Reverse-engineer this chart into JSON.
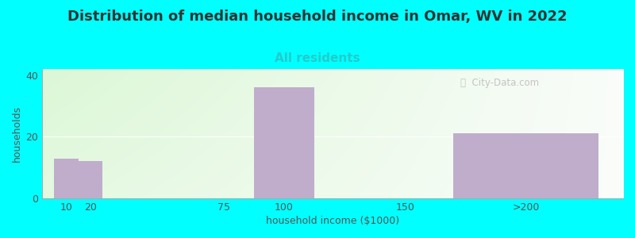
{
  "title": "Distribution of median household income in Omar, WV in 2022",
  "subtitle": "All residents",
  "xlabel": "household income ($1000)",
  "ylabel": "households",
  "background_color": "#00FFFF",
  "bar_color": "#C0ADCC",
  "categories": [
    "10",
    "20",
    "75",
    "100",
    "150",
    ">200"
  ],
  "x_positions": [
    10,
    20,
    75,
    100,
    150,
    200
  ],
  "bar_widths": [
    10,
    10,
    10,
    25,
    10,
    60
  ],
  "values": [
    13,
    12,
    0,
    36,
    0,
    21
  ],
  "yticks": [
    0,
    20,
    40
  ],
  "ylim": [
    0,
    42
  ],
  "xlim": [
    0,
    240
  ],
  "xtick_positions": [
    10,
    20,
    75,
    100,
    150,
    200
  ],
  "xtick_labels": [
    "10",
    "20",
    "75",
    "100",
    "150",
    ">200"
  ],
  "watermark": "  City-Data.com",
  "title_fontsize": 13,
  "subtitle_fontsize": 11,
  "axis_label_fontsize": 9,
  "tick_fontsize": 9,
  "watermark_color": "#BBBBBB",
  "title_color": "#333333",
  "subtitle_color": "#22CCCC",
  "axis_color": "#555555"
}
